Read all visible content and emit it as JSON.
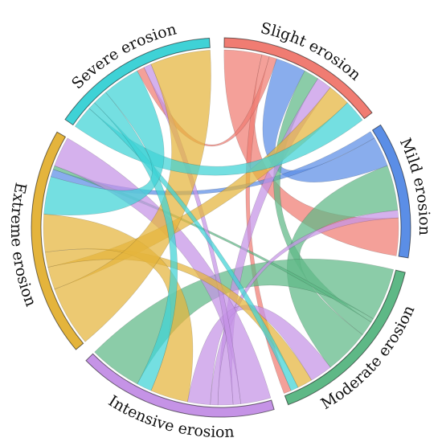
{
  "chart_data": {
    "type": "chord",
    "groups": [
      {
        "name": "Slight erosion",
        "color": "#F07C72"
      },
      {
        "name": "Mild erosion",
        "color": "#5B8EE6"
      },
      {
        "name": "Moderate erosion",
        "color": "#5EB886"
      },
      {
        "name": "Intensive erosion",
        "color": "#C593E6"
      },
      {
        "name": "Extreme erosion",
        "color": "#E4B43C"
      },
      {
        "name": "Severe erosion",
        "color": "#3FD2D6"
      }
    ],
    "flows": [
      {
        "from": "Slight erosion",
        "to": "Mild erosion",
        "value": 5
      },
      {
        "from": "Slight erosion",
        "to": "Moderate erosion",
        "value": 1
      },
      {
        "from": "Slight erosion",
        "to": "Severe erosion",
        "value": 1
      },
      {
        "from": "Mild erosion",
        "to": "Slight erosion",
        "value": 4
      },
      {
        "from": "Mild erosion",
        "to": "Extreme erosion",
        "value": 1
      },
      {
        "from": "Moderate erosion",
        "to": "Slight erosion",
        "value": 2
      },
      {
        "from": "Moderate erosion",
        "to": "Mild erosion",
        "value": 6
      },
      {
        "from": "Moderate erosion",
        "to": "Intensive erosion",
        "value": 7
      },
      {
        "from": "Moderate erosion",
        "to": "Extreme erosion",
        "value": 0.5
      },
      {
        "from": "Intensive erosion",
        "to": "Slight erosion",
        "value": 2
      },
      {
        "from": "Intensive erosion",
        "to": "Mild erosion",
        "value": 1
      },
      {
        "from": "Intensive erosion",
        "to": "Moderate erosion",
        "value": 3
      },
      {
        "from": "Intensive erosion",
        "to": "Extreme erosion",
        "value": 4
      },
      {
        "from": "Intensive erosion",
        "to": "Severe erosion",
        "value": 1
      },
      {
        "from": "Extreme erosion",
        "to": "Slight erosion",
        "value": 3
      },
      {
        "from": "Extreme erosion",
        "to": "Moderate erosion",
        "value": 2
      },
      {
        "from": "Extreme erosion",
        "to": "Intensive erosion",
        "value": 5
      },
      {
        "from": "Extreme erosion",
        "to": "Severe erosion",
        "value": 8
      },
      {
        "from": "Severe erosion",
        "to": "Slight erosion",
        "value": 3
      },
      {
        "from": "Severe erosion",
        "to": "Moderate erosion",
        "value": 1
      },
      {
        "from": "Severe erosion",
        "to": "Intensive erosion",
        "value": 2
      },
      {
        "from": "Severe erosion",
        "to": "Extreme erosion",
        "value": 5
      }
    ]
  }
}
